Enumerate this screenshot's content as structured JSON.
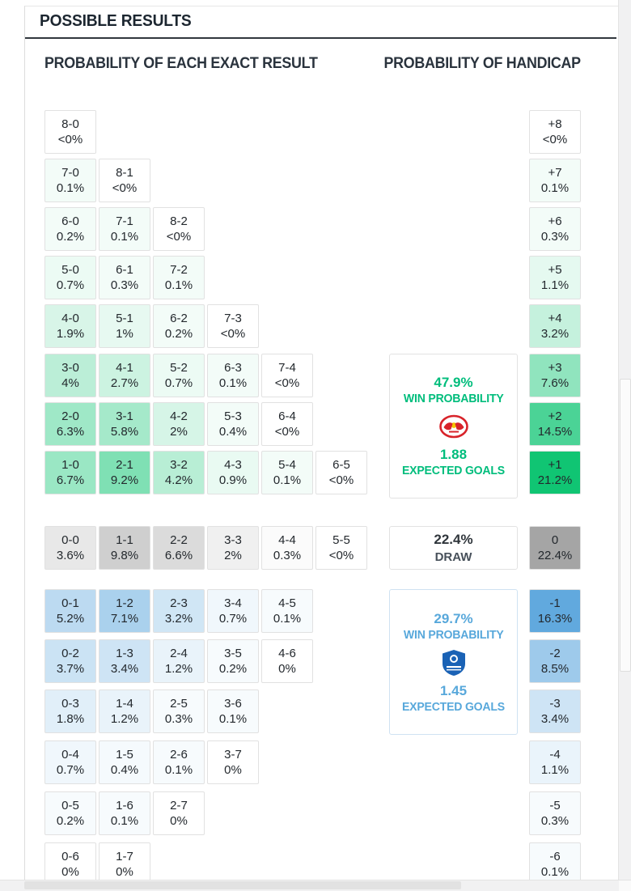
{
  "header": {
    "title": "POSSIBLE RESULTS"
  },
  "section_headers": {
    "exact": "PROBABILITY OF EACH EXACT RESULT",
    "handicap": "PROBABILITY OF HANDICAP"
  },
  "colors": {
    "home_accent": "#10c573",
    "away_accent": "#61a9de",
    "draw_accent": "#a5a5a5",
    "home_text": "#00bd7c",
    "away_text": "#58a8db",
    "cell_border": "#e1e1e1"
  },
  "grid": {
    "home_rows": [
      [
        {
          "score": "8-0",
          "pct": "<0%"
        }
      ],
      [
        {
          "score": "7-0",
          "pct": "0.1%"
        },
        {
          "score": "8-1",
          "pct": "<0%"
        }
      ],
      [
        {
          "score": "6-0",
          "pct": "0.2%"
        },
        {
          "score": "7-1",
          "pct": "0.1%"
        },
        {
          "score": "8-2",
          "pct": "<0%"
        }
      ],
      [
        {
          "score": "5-0",
          "pct": "0.7%"
        },
        {
          "score": "6-1",
          "pct": "0.3%"
        },
        {
          "score": "7-2",
          "pct": "0.1%"
        }
      ],
      [
        {
          "score": "4-0",
          "pct": "1.9%"
        },
        {
          "score": "5-1",
          "pct": "1%"
        },
        {
          "score": "6-2",
          "pct": "0.2%"
        },
        {
          "score": "7-3",
          "pct": "<0%"
        }
      ],
      [
        {
          "score": "3-0",
          "pct": "4%"
        },
        {
          "score": "4-1",
          "pct": "2.7%"
        },
        {
          "score": "5-2",
          "pct": "0.7%"
        },
        {
          "score": "6-3",
          "pct": "0.1%"
        },
        {
          "score": "7-4",
          "pct": "<0%"
        }
      ],
      [
        {
          "score": "2-0",
          "pct": "6.3%"
        },
        {
          "score": "3-1",
          "pct": "5.8%"
        },
        {
          "score": "4-2",
          "pct": "2%"
        },
        {
          "score": "5-3",
          "pct": "0.4%"
        },
        {
          "score": "6-4",
          "pct": "<0%"
        }
      ],
      [
        {
          "score": "1-0",
          "pct": "6.7%"
        },
        {
          "score": "2-1",
          "pct": "9.2%"
        },
        {
          "score": "3-2",
          "pct": "4.2%"
        },
        {
          "score": "4-3",
          "pct": "0.9%"
        },
        {
          "score": "5-4",
          "pct": "0.1%"
        },
        {
          "score": "6-5",
          "pct": "<0%"
        }
      ]
    ],
    "draw_row": [
      {
        "score": "0-0",
        "pct": "3.6%"
      },
      {
        "score": "1-1",
        "pct": "9.8%"
      },
      {
        "score": "2-2",
        "pct": "6.6%"
      },
      {
        "score": "3-3",
        "pct": "2%"
      },
      {
        "score": "4-4",
        "pct": "0.3%"
      },
      {
        "score": "5-5",
        "pct": "<0%"
      }
    ],
    "away_rows": [
      [
        {
          "score": "0-1",
          "pct": "5.2%"
        },
        {
          "score": "1-2",
          "pct": "7.1%"
        },
        {
          "score": "2-3",
          "pct": "3.2%"
        },
        {
          "score": "3-4",
          "pct": "0.7%"
        },
        {
          "score": "4-5",
          "pct": "0.1%"
        }
      ],
      [
        {
          "score": "0-2",
          "pct": "3.7%"
        },
        {
          "score": "1-3",
          "pct": "3.4%"
        },
        {
          "score": "2-4",
          "pct": "1.2%"
        },
        {
          "score": "3-5",
          "pct": "0.2%"
        },
        {
          "score": "4-6",
          "pct": "0%"
        }
      ],
      [
        {
          "score": "0-3",
          "pct": "1.8%"
        },
        {
          "score": "1-4",
          "pct": "1.2%"
        },
        {
          "score": "2-5",
          "pct": "0.3%"
        },
        {
          "score": "3-6",
          "pct": "0.1%"
        }
      ],
      [
        {
          "score": "0-4",
          "pct": "0.7%"
        },
        {
          "score": "1-5",
          "pct": "0.4%"
        },
        {
          "score": "2-6",
          "pct": "0.1%"
        },
        {
          "score": "3-7",
          "pct": "0%"
        }
      ],
      [
        {
          "score": "0-5",
          "pct": "0.2%"
        },
        {
          "score": "1-6",
          "pct": "0.1%"
        },
        {
          "score": "2-7",
          "pct": "0%"
        }
      ],
      [
        {
          "score": "0-6",
          "pct": "0%"
        },
        {
          "score": "1-7",
          "pct": "0%"
        }
      ]
    ],
    "handicap_home": [
      {
        "label": "+8",
        "pct": "<0%"
      },
      {
        "label": "+7",
        "pct": "0.1%"
      },
      {
        "label": "+6",
        "pct": "0.3%"
      },
      {
        "label": "+5",
        "pct": "1.1%"
      },
      {
        "label": "+4",
        "pct": "3.2%"
      },
      {
        "label": "+3",
        "pct": "7.6%"
      },
      {
        "label": "+2",
        "pct": "14.5%"
      },
      {
        "label": "+1",
        "pct": "21.2%"
      }
    ],
    "handicap_draw": {
      "label": "0",
      "pct": "22.4%"
    },
    "handicap_away": [
      {
        "label": "-1",
        "pct": "16.3%"
      },
      {
        "label": "-2",
        "pct": "8.5%"
      },
      {
        "label": "-3",
        "pct": "3.4%"
      },
      {
        "label": "-4",
        "pct": "1.1%"
      },
      {
        "label": "-5",
        "pct": "0.3%"
      },
      {
        "label": "-6",
        "pct": "0.1%"
      }
    ]
  },
  "summary": {
    "home": {
      "win_pct": "47.9%",
      "win_label": "WIN PROBABILITY",
      "logo_icon": "home-team-crest-icon",
      "expected_goals": "1.88",
      "goals_label": "EXPECTED GOALS"
    },
    "draw": {
      "pct": "22.4%",
      "label": "DRAW"
    },
    "away": {
      "win_pct": "29.7%",
      "win_label": "WIN PROBABILITY",
      "logo_icon": "away-team-crest-icon",
      "expected_goals": "1.45",
      "goals_label": "EXPECTED GOALS"
    }
  }
}
